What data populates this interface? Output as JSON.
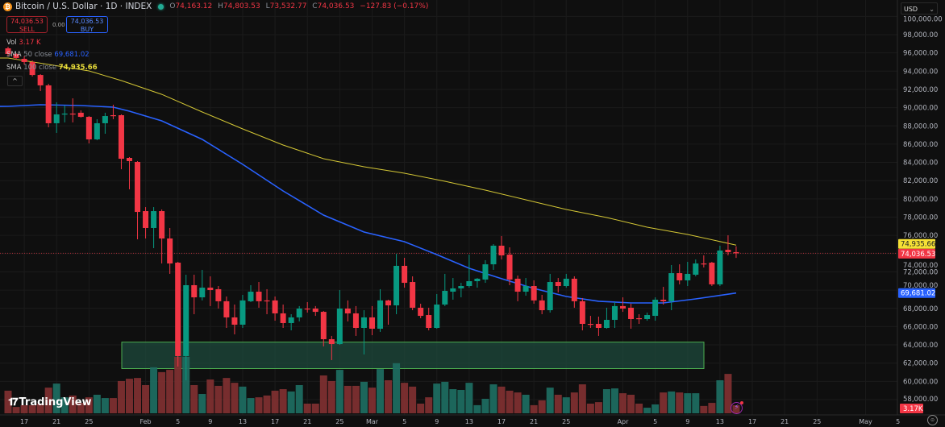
{
  "header": {
    "symbol_icon": "bitcoin-icon",
    "title": "Bitcoin / U.S. Dollar · 1D · INDEX",
    "status": "market-open-dot",
    "ohlc": {
      "o_label": "O",
      "o": "74,163.12",
      "h_label": "H",
      "h": "74,803.53",
      "l_label": "L",
      "l": "73,532.77",
      "c_label": "C",
      "c": "74,036.53",
      "change": "−127.83 (−0.17%)"
    }
  },
  "trade": {
    "sell_price": "74,036.53",
    "sell_label": "SELL",
    "spread": "0.00",
    "buy_price": "74,036.53",
    "buy_label": "BUY"
  },
  "legend": {
    "vol_label": "Vol",
    "vol_value": "3.17 K",
    "sma50_label": "SMA",
    "sma50_params": "50 close",
    "sma50_value": "69,681.02",
    "sma100_label": "SMA",
    "sma100_params": "100 close",
    "sma100_value": "74,935.66",
    "collapse": "^"
  },
  "currency": {
    "label": "USD",
    "chevron": "⌄"
  },
  "colors": {
    "up": "#089981",
    "down": "#f23645",
    "sma50": "#2962ff",
    "sma100": "#d4c735",
    "zone_fill": "#1d4a3c",
    "zone_stroke": "#4caf50",
    "bg": "#0f0f0f"
  },
  "price_axis": [
    "100,000.00",
    "98,000.00",
    "96,000.00",
    "94,000.00",
    "92,000.00",
    "90,000.00",
    "88,000.00",
    "86,000.00",
    "84,000.00",
    "82,000.00",
    "80,000.00",
    "78,000.00",
    "76,000.00",
    "74,000.00",
    "72,000.00",
    "70,000.00",
    "68,000.00",
    "66,000.00",
    "64,000.00",
    "62,000.00",
    "60,000.00",
    "58,000.00"
  ],
  "price_badges": {
    "sma100": "74,935.66",
    "last": "74,036.53",
    "sma50": "69,681.02",
    "volume": "3.17K"
  },
  "date_axis": [
    "17",
    "21",
    "25",
    "Feb",
    "5",
    "9",
    "13",
    "17",
    "21",
    "25",
    "Mar",
    "5",
    "9",
    "13",
    "17",
    "21",
    "25",
    "Apr",
    "5",
    "9",
    "13",
    "17",
    "21",
    "25",
    "May",
    "5"
  ],
  "chart_data": {
    "type": "candlestick",
    "interval": "1D",
    "ylim": [
      57000,
      100500
    ],
    "last_price": 74036.53,
    "zone": {
      "from": 61400,
      "to": 64300
    },
    "candles": [
      [
        96500,
        96680,
        95620,
        95880
      ],
      [
        95880,
        95970,
        95270,
        95440
      ],
      [
        95350,
        95620,
        94730,
        95000
      ],
      [
        95000,
        95170,
        93410,
        93580
      ],
      [
        93580,
        93670,
        91820,
        92440
      ],
      [
        92440,
        92610,
        87850,
        88290
      ],
      [
        88290,
        90580,
        87230,
        89260
      ],
      [
        89260,
        90230,
        88380,
        89350
      ],
      [
        89350,
        91020,
        88380,
        89340
      ],
      [
        89440,
        89700,
        88910,
        88990
      ],
      [
        88990,
        89080,
        86080,
        86520
      ],
      [
        86520,
        88730,
        86430,
        88290
      ],
      [
        88290,
        89440,
        87140,
        89080
      ],
      [
        89170,
        90320,
        88730,
        89150
      ],
      [
        89170,
        89260,
        83250,
        84400
      ],
      [
        84490,
        84580,
        81050,
        84140
      ],
      [
        84050,
        84140,
        75570,
        78570
      ],
      [
        78660,
        79100,
        75660,
        76810
      ],
      [
        76810,
        79100,
        74600,
        78660
      ],
      [
        78660,
        78840,
        72920,
        75660
      ],
      [
        75660,
        76810,
        71780,
        72920
      ],
      [
        73010,
        73100,
        61620,
        62770
      ],
      [
        62770,
        71690,
        60120,
        70540
      ],
      [
        70540,
        71690,
        67360,
        69210
      ],
      [
        69210,
        72220,
        68870,
        70270
      ],
      [
        70270,
        71510,
        68250,
        70010
      ],
      [
        70100,
        70450,
        67980,
        68780
      ],
      [
        68780,
        69300,
        65860,
        67010
      ],
      [
        67010,
        68420,
        65150,
        66210
      ],
      [
        66210,
        69480,
        65860,
        68870
      ],
      [
        68780,
        70540,
        68690,
        69830
      ],
      [
        69830,
        70890,
        68070,
        68780
      ],
      [
        68870,
        70100,
        67360,
        68850
      ],
      [
        68870,
        69300,
        66650,
        67450
      ],
      [
        67450,
        68420,
        65860,
        66390
      ],
      [
        66390,
        67360,
        65590,
        67010
      ],
      [
        67010,
        68250,
        66570,
        67980
      ],
      [
        67980,
        68690,
        67540,
        67960
      ],
      [
        67980,
        68250,
        67180,
        67620
      ],
      [
        67620,
        67710,
        63830,
        64620
      ],
      [
        64620,
        64980,
        62330,
        64090
      ],
      [
        64090,
        70010,
        64000,
        67980
      ],
      [
        67980,
        68870,
        66570,
        67450
      ],
      [
        67450,
        68250,
        64980,
        65860
      ],
      [
        65860,
        67800,
        62950,
        67010
      ],
      [
        67010,
        68250,
        65060,
        65770
      ],
      [
        65770,
        70100,
        65420,
        68870
      ],
      [
        68870,
        68950,
        66210,
        68330
      ],
      [
        68330,
        73980,
        67360,
        72660
      ],
      [
        72660,
        73540,
        70270,
        70800
      ],
      [
        70890,
        71510,
        67800,
        68070
      ],
      [
        68070,
        68510,
        66920,
        67180
      ],
      [
        67270,
        68070,
        65590,
        65860
      ],
      [
        65860,
        69570,
        65770,
        68420
      ],
      [
        68420,
        71780,
        68250,
        69920
      ],
      [
        69830,
        71330,
        68950,
        70190
      ],
      [
        70190,
        70800,
        69210,
        70450
      ],
      [
        70450,
        73890,
        70270,
        70980
      ],
      [
        70980,
        71330,
        70270,
        71250
      ],
      [
        71160,
        73280,
        70800,
        72830
      ],
      [
        72830,
        75040,
        72220,
        74870
      ],
      [
        74870,
        75930,
        73360,
        73810
      ],
      [
        73890,
        74690,
        70540,
        71160
      ],
      [
        71250,
        71600,
        68780,
        69830
      ],
      [
        69830,
        71330,
        69390,
        70450
      ],
      [
        70450,
        71070,
        68510,
        68870
      ],
      [
        68870,
        69480,
        67360,
        67800
      ],
      [
        67800,
        71780,
        67540,
        70890
      ],
      [
        70890,
        71330,
        69740,
        70450
      ],
      [
        70450,
        71780,
        70270,
        71250
      ],
      [
        71250,
        71510,
        68070,
        68780
      ],
      [
        68780,
        69130,
        65590,
        66300
      ],
      [
        66300,
        67180,
        65860,
        66280
      ],
      [
        66300,
        67095,
        64980,
        65860
      ],
      [
        65860,
        68070,
        65770,
        66740
      ],
      [
        66740,
        68690,
        65860,
        68250
      ],
      [
        68250,
        69210,
        67620,
        67980
      ],
      [
        68070,
        68510,
        65770,
        66830
      ],
      [
        66920,
        67360,
        66300,
        66900
      ],
      [
        66830,
        67540,
        66650,
        67270
      ],
      [
        67180,
        69210,
        66650,
        68950
      ],
      [
        68950,
        70360,
        68420,
        68780
      ],
      [
        68780,
        72750,
        67800,
        71860
      ],
      [
        71860,
        72830,
        70630,
        71070
      ],
      [
        71070,
        73100,
        70450,
        71780
      ],
      [
        71690,
        73360,
        71510,
        72920
      ],
      [
        72920,
        73810,
        72480,
        72900
      ],
      [
        73010,
        73100,
        70450,
        70630
      ],
      [
        70630,
        74870,
        70450,
        74340
      ],
      [
        74420,
        76010,
        73810,
        74160
      ],
      [
        74163.12,
        74803.53,
        73532.77,
        74036.53
      ]
    ],
    "volume_k": [
      8.9,
      2.5,
      3.2,
      3.2,
      3.8,
      10.1,
      11.7,
      6.3,
      7.0,
      4.1,
      6.3,
      7.3,
      6.0,
      6.0,
      12.7,
      13.6,
      13.9,
      11.1,
      18.1,
      16.2,
      17.1,
      22.2,
      22.2,
      11.1,
      7.6,
      13.3,
      10.8,
      13.9,
      12.0,
      10.5,
      6.0,
      6.3,
      7.0,
      8.9,
      9.5,
      8.6,
      11.1,
      3.8,
      3.8,
      14.9,
      12.7,
      17.1,
      10.8,
      10.8,
      12.4,
      10.1,
      17.4,
      13.0,
      19.7,
      12.0,
      10.5,
      3.8,
      6.3,
      11.7,
      12.4,
      9.5,
      9.2,
      12.0,
      3.2,
      5.7,
      11.4,
      10.5,
      8.9,
      8.2,
      7.3,
      3.2,
      5.1,
      10.1,
      7.3,
      6.3,
      8.2,
      11.4,
      3.8,
      4.4,
      9.5,
      9.8,
      7.9,
      7.3,
      3.8,
      2.2,
      3.5,
      8.2,
      8.6,
      8.2,
      7.9,
      7.9,
      2.9,
      4.1,
      13.0,
      15.5,
      3.17
    ],
    "sma100": [
      [
        0,
        95440
      ],
      [
        10,
        94030
      ],
      [
        14,
        92970
      ],
      [
        19,
        91460
      ],
      [
        24,
        89520
      ],
      [
        29,
        87670
      ],
      [
        34,
        85900
      ],
      [
        39,
        84400
      ],
      [
        44,
        83520
      ],
      [
        49,
        82810
      ],
      [
        54,
        81930
      ],
      [
        59,
        80960
      ],
      [
        64,
        79900
      ],
      [
        69,
        78840
      ],
      [
        74,
        77960
      ],
      [
        79,
        76900
      ],
      [
        84,
        76100
      ],
      [
        90,
        74935.66
      ]
    ],
    "sma50": [
      [
        0,
        90140
      ],
      [
        4,
        90320
      ],
      [
        9,
        90230
      ],
      [
        13,
        90050
      ],
      [
        15,
        89610
      ],
      [
        19,
        88550
      ],
      [
        24,
        86520
      ],
      [
        29,
        83780
      ],
      [
        34,
        80870
      ],
      [
        39,
        78220
      ],
      [
        44,
        76370
      ],
      [
        49,
        75310
      ],
      [
        53,
        73890
      ],
      [
        57,
        72390
      ],
      [
        61,
        71250
      ],
      [
        65,
        70190
      ],
      [
        69,
        69300
      ],
      [
        73,
        68780
      ],
      [
        77,
        68600
      ],
      [
        81,
        68600
      ],
      [
        85,
        69040
      ],
      [
        90,
        69681.02
      ]
    ]
  },
  "branding": {
    "logo_text": "TradingView"
  },
  "icons": {
    "bolt": "⚡",
    "gear": "⊙"
  }
}
